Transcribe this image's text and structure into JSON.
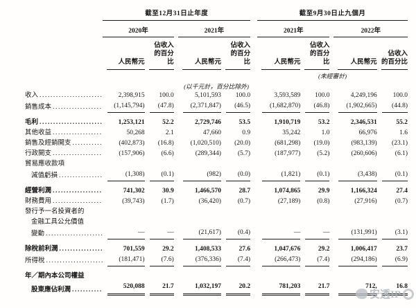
{
  "table": {
    "groups": [
      {
        "title": "截至12月31日止年度",
        "years": [
          "2020年",
          "2021年"
        ]
      },
      {
        "title": "截至9月30日止九個月",
        "years": [
          "2021年",
          "2022年"
        ]
      }
    ],
    "col_headers": {
      "rmb": "人民幣元",
      "pct_line1": "佔收入",
      "pct_line2": "的百分比"
    },
    "notes": {
      "unaudited": "(未經審計)",
      "units": "(以千元計，百分比除外)"
    },
    "rows": [
      {
        "name": "revenue",
        "lines": [
          "收入"
        ],
        "bold": false,
        "rule": null,
        "spaced": false,
        "values": [
          "2,398,915",
          "100.0",
          "5,101,593",
          "100.0",
          "3,593,589",
          "100.0",
          "4,249,196",
          "100.0"
        ]
      },
      {
        "name": "cost-of-sales",
        "lines": [
          "銷售成本"
        ],
        "bold": false,
        "rule": "single",
        "spaced": false,
        "values": [
          "(1,145,794)",
          "(47.8)",
          "(2,371,847)",
          "(46.5)",
          "(1,682,870)",
          "(46.8)",
          "(1,902,665)",
          "(44.8)"
        ]
      },
      {
        "name": "gross-profit",
        "lines": [
          "毛利"
        ],
        "bold": true,
        "rule": null,
        "spaced": true,
        "values": [
          "1,253,121",
          "52.2",
          "2,729,746",
          "53.5",
          "1,910,719",
          "53.2",
          "2,346,531",
          "55.2"
        ]
      },
      {
        "name": "other-income",
        "lines": [
          "其他收益"
        ],
        "bold": false,
        "rule": null,
        "spaced": false,
        "values": [
          "50,268",
          "2.1",
          "47,660",
          "0.9",
          "35,242",
          "1.0",
          "66,976",
          "1.6"
        ]
      },
      {
        "name": "selling-distribution-expenses",
        "lines": [
          "銷售及經銷開支"
        ],
        "bold": false,
        "rule": null,
        "spaced": false,
        "values": [
          "(402,873)",
          "(16.8)",
          "(1,020,510)",
          "(20.0)",
          "(681,298)",
          "(19.0)",
          "(983,139)",
          "(23.1)"
        ]
      },
      {
        "name": "admin-expenses",
        "lines": [
          "行政開支"
        ],
        "bold": false,
        "rule": null,
        "spaced": false,
        "values": [
          "(157,906)",
          "(6.6)",
          "(289,344)",
          "(5.7)",
          "(187,977)",
          "(5.2)",
          "(260,606)",
          "(6.1)"
        ]
      },
      {
        "name": "trade-receivables-impairment",
        "lines": [
          "貿易應收款項",
          "減值虧損"
        ],
        "bold": false,
        "rule": "single",
        "spaced": false,
        "values": [
          "(1,308)",
          "(0.1)",
          "(982)",
          "(0.0)",
          "(1,821)",
          "(0.1)",
          "(3,438)",
          "(0.1)"
        ]
      },
      {
        "name": "operating-profit",
        "lines": [
          "經營利潤"
        ],
        "bold": true,
        "rule": null,
        "spaced": true,
        "values": [
          "741,302",
          "30.9",
          "1,466,570",
          "28.7",
          "1,074,865",
          "29.9",
          "1,166,324",
          "27.4"
        ]
      },
      {
        "name": "finance-costs",
        "lines": [
          "財務費用"
        ],
        "bold": false,
        "rule": null,
        "spaced": false,
        "values": [
          "(39,743)",
          "(1.7)",
          "(36,420)",
          "(0.7)",
          "(27,189)",
          "(0.8)",
          "(27,916)",
          "(0.7)"
        ]
      },
      {
        "name": "fv-change-financial-instruments",
        "lines": [
          "發行予一名投資者的",
          "金融工具公允價值",
          "變動"
        ],
        "bold": false,
        "rule": "single",
        "spaced": false,
        "values": [
          "—",
          "—",
          "(21,617)",
          "(0.4)",
          "—",
          "—",
          "(131,991)",
          "(3.1)"
        ]
      },
      {
        "name": "profit-before-tax",
        "lines": [
          "除稅前利潤"
        ],
        "bold": true,
        "rule": null,
        "spaced": true,
        "values": [
          "701,559",
          "29.2",
          "1,408,533",
          "27.6",
          "1,047,676",
          "29.2",
          "1,006,417",
          "23.7"
        ]
      },
      {
        "name": "income-tax",
        "lines": [
          "所得稅"
        ],
        "bold": false,
        "rule": "single",
        "spaced": false,
        "values": [
          "(181,471)",
          "(7.6)",
          "(376,336)",
          "(7.4)",
          "(266,473)",
          "(7.4)",
          "(294,186)",
          "(6.9)"
        ]
      },
      {
        "name": "attributable-profit",
        "lines": [
          "年／期內本公司權益",
          "股東應佔利潤"
        ],
        "bold": true,
        "rule": "double",
        "spaced": true,
        "values": [
          "520,088",
          "21.7",
          "1,032,197",
          "20.2",
          "781,203",
          "21.7",
          "712,",
          "16.8"
        ]
      }
    ],
    "watermark": {
      "text": "安透IP"
    }
  }
}
